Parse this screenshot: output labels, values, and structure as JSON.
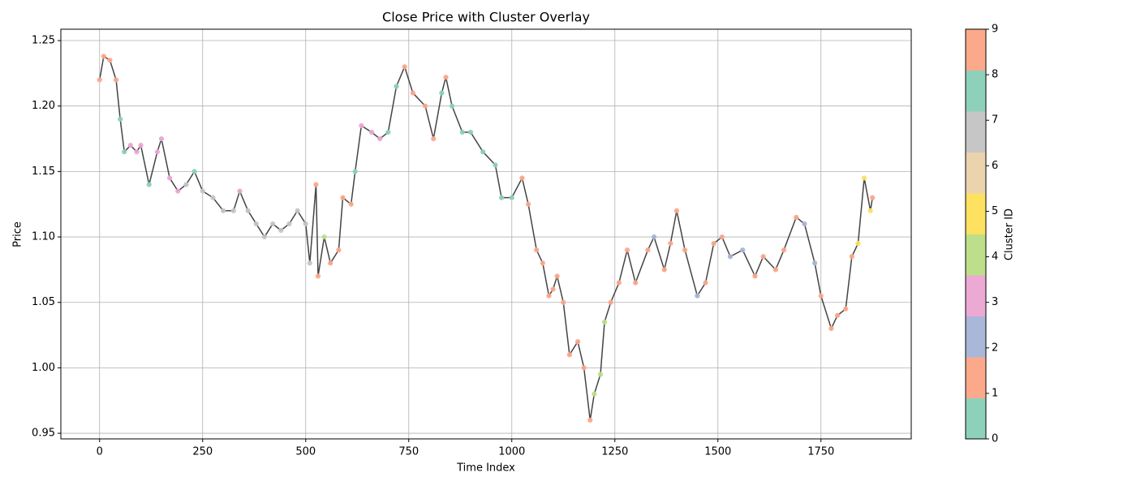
{
  "chart_data": {
    "type": "line",
    "title": "Close Price with Cluster Overlay",
    "x_label": "Time Index",
    "y_label": "Price",
    "xlim": [
      -94,
      1969
    ],
    "ylim": [
      0.9457,
      1.2587
    ],
    "xticks": [
      0,
      250,
      500,
      750,
      1000,
      1250,
      1500,
      1750
    ],
    "yticks": [
      {
        "value": 0.95,
        "label": "0.95"
      },
      {
        "value": 1.0,
        "label": "1.00"
      },
      {
        "value": 1.05,
        "label": "1.05"
      },
      {
        "value": 1.1,
        "label": "1.10"
      },
      {
        "value": 1.15,
        "label": "1.15"
      },
      {
        "value": 1.2,
        "label": "1.20"
      },
      {
        "value": 1.25,
        "label": "1.25"
      }
    ],
    "grid": true,
    "line_color": "#444444",
    "x": [
      0,
      10,
      25,
      40,
      50,
      60,
      75,
      90,
      100,
      120,
      140,
      150,
      170,
      190,
      210,
      230,
      250,
      275,
      300,
      325,
      340,
      360,
      380,
      400,
      420,
      440,
      460,
      480,
      500,
      510,
      525,
      530,
      545,
      560,
      580,
      590,
      610,
      620,
      635,
      660,
      680,
      700,
      720,
      740,
      760,
      790,
      810,
      830,
      840,
      855,
      880,
      900,
      930,
      960,
      975,
      1000,
      1025,
      1040,
      1060,
      1075,
      1090,
      1100,
      1110,
      1125,
      1140,
      1160,
      1175,
      1190,
      1200,
      1215,
      1225,
      1240,
      1260,
      1280,
      1300,
      1330,
      1345,
      1370,
      1385,
      1400,
      1420,
      1450,
      1470,
      1490,
      1510,
      1530,
      1560,
      1590,
      1610,
      1640,
      1660,
      1690,
      1710,
      1735,
      1750,
      1775,
      1790,
      1810,
      1825,
      1840,
      1855,
      1870,
      1875
    ],
    "values": [
      1.22,
      1.238,
      1.235,
      1.22,
      1.19,
      1.165,
      1.17,
      1.165,
      1.17,
      1.14,
      1.165,
      1.175,
      1.145,
      1.135,
      1.14,
      1.15,
      1.135,
      1.13,
      1.12,
      1.12,
      1.135,
      1.12,
      1.11,
      1.1,
      1.11,
      1.105,
      1.11,
      1.12,
      1.11,
      1.08,
      1.14,
      1.07,
      1.1,
      1.08,
      1.09,
      1.13,
      1.125,
      1.15,
      1.185,
      1.18,
      1.175,
      1.18,
      1.215,
      1.23,
      1.21,
      1.2,
      1.175,
      1.21,
      1.222,
      1.2,
      1.18,
      1.18,
      1.165,
      1.155,
      1.13,
      1.13,
      1.145,
      1.125,
      1.09,
      1.08,
      1.055,
      1.06,
      1.07,
      1.05,
      1.01,
      1.02,
      1.0,
      0.96,
      0.98,
      0.995,
      1.035,
      1.05,
      1.065,
      1.09,
      1.065,
      1.09,
      1.1,
      1.075,
      1.095,
      1.12,
      1.09,
      1.055,
      1.065,
      1.095,
      1.1,
      1.085,
      1.09,
      1.07,
      1.085,
      1.075,
      1.09,
      1.115,
      1.11,
      1.08,
      1.055,
      1.03,
      1.04,
      1.045,
      1.085,
      1.095,
      1.145,
      1.12,
      1.13
    ],
    "clusters": [
      1,
      1,
      1,
      1,
      0,
      0,
      3,
      3,
      3,
      0,
      3,
      3,
      3,
      3,
      7,
      0,
      7,
      7,
      7,
      7,
      3,
      7,
      7,
      7,
      7,
      7,
      7,
      7,
      7,
      7,
      1,
      1,
      4,
      1,
      1,
      1,
      1,
      0,
      3,
      3,
      3,
      0,
      0,
      1,
      1,
      1,
      1,
      0,
      1,
      0,
      0,
      0,
      0,
      0,
      0,
      0,
      1,
      1,
      1,
      1,
      1,
      1,
      1,
      1,
      1,
      1,
      1,
      1,
      4,
      4,
      4,
      1,
      1,
      1,
      1,
      1,
      2,
      1,
      1,
      1,
      1,
      2,
      1,
      1,
      1,
      2,
      2,
      1,
      1,
      1,
      1,
      1,
      2,
      2,
      1,
      1,
      1,
      1,
      1,
      5,
      5,
      5,
      1
    ],
    "colorbar": {
      "label": "Cluster ID",
      "lim": [
        0,
        9
      ],
      "ticks": [
        0,
        1,
        2,
        3,
        4,
        5,
        6,
        7,
        8,
        9
      ],
      "colors": [
        "#8ed1ba",
        "#fca98b",
        "#a9b7d8",
        "#eca9d4",
        "#bedf89",
        "#fee161",
        "#ebd3ae",
        "#c6c6c6",
        "#8ed1ba",
        "#fca98b"
      ]
    }
  }
}
